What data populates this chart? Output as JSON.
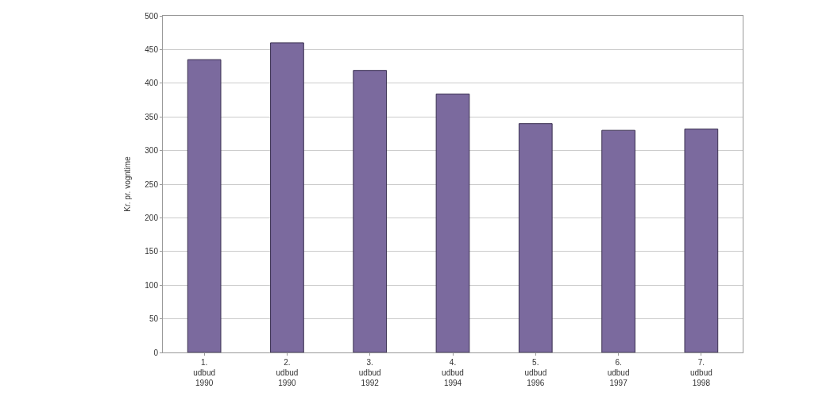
{
  "chart_data": {
    "type": "bar",
    "ylabel": "Kr. pr. vogntime",
    "categories": [
      "1.\nudbud\n1990",
      "2.\nudbud\n1990",
      "3.\nudbud\n1992",
      "4.\nudbud\n1994",
      "5.\nudbud\n1996",
      "6.\nudbud\n1997",
      "7.\nudbud\n1998"
    ],
    "values": [
      435,
      460,
      419,
      384,
      340,
      330,
      332
    ],
    "color": "#7b6a9e",
    "ylim": [
      0,
      500
    ],
    "yticks": [
      0,
      50,
      100,
      150,
      200,
      250,
      300,
      350,
      400,
      450,
      500
    ],
    "grid": "y"
  }
}
